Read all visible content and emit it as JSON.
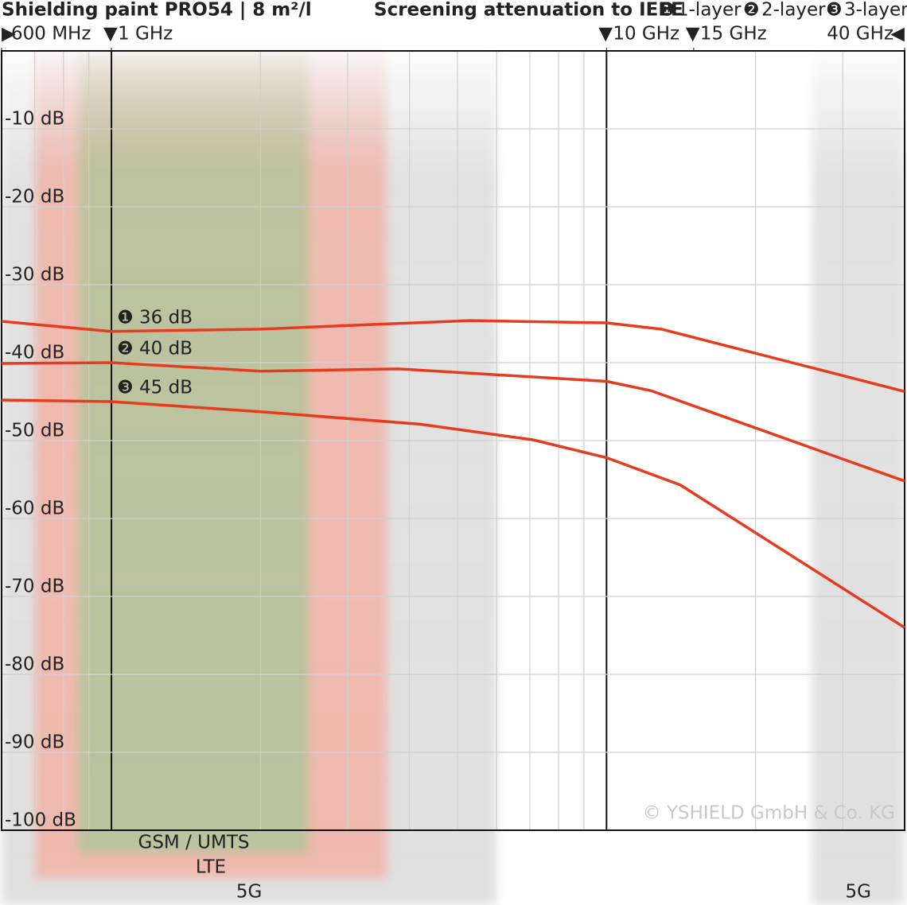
{
  "chart_data": {
    "type": "line",
    "title": "Shielding paint PRO54 | 8 m²/l",
    "subtitle": "Screening attenuation to IEEE",
    "xscale": "log",
    "xlim": [
      0.6,
      40
    ],
    "xticks": [
      {
        "value": 0.6,
        "label": "600 MHz",
        "marker": "right"
      },
      {
        "value": 1,
        "label": "1 GHz",
        "marker": "down"
      },
      {
        "value": 10,
        "label": "10 GHz",
        "marker": "down"
      },
      {
        "value": 15,
        "label": "15 GHz",
        "marker": "down"
      },
      {
        "value": 40,
        "label": "40 GHz",
        "marker": "left"
      }
    ],
    "ylim": [
      -100,
      0
    ],
    "yticks": [
      {
        "value": -10,
        "label": "-10 dB"
      },
      {
        "value": -20,
        "label": "-20 dB"
      },
      {
        "value": -30,
        "label": "-30 dB"
      },
      {
        "value": -40,
        "label": "-40 dB"
      },
      {
        "value": -50,
        "label": "-50 dB"
      },
      {
        "value": -60,
        "label": "-60 dB"
      },
      {
        "value": -70,
        "label": "-70 dB"
      },
      {
        "value": -80,
        "label": "-80 dB"
      },
      {
        "value": -90,
        "label": "-90 dB"
      },
      {
        "value": -100,
        "label": "-100 dB"
      }
    ],
    "grid": true,
    "series": [
      {
        "name": "1-layer",
        "badge": "❶",
        "color": "#e63c1e",
        "x": [
          0.6,
          1,
          2,
          5.3,
          10,
          12.9,
          40
        ],
        "values": [
          -34.7,
          -36,
          -35.7,
          -34.6,
          -34.9,
          -35.7,
          -43.7
        ],
        "value_labels": [
          null,
          "36 dB",
          null,
          null,
          null,
          null,
          null
        ]
      },
      {
        "name": "2-layer",
        "badge": "❷",
        "color": "#e63c1e",
        "x": [
          0.6,
          1,
          2,
          3.8,
          10,
          12.3,
          40
        ],
        "values": [
          -40.1,
          -40,
          -41.1,
          -40.8,
          -42.4,
          -43.6,
          -55.2
        ],
        "value_labels": [
          null,
          "40 dB",
          null,
          null,
          null,
          null,
          null
        ]
      },
      {
        "name": "3-layer",
        "badge": "❸",
        "color": "#e63c1e",
        "x": [
          0.6,
          1,
          2,
          4.2,
          7.1,
          10,
          14.1,
          40
        ],
        "values": [
          -44.8,
          -45,
          -46.3,
          -47.9,
          -49.9,
          -52.2,
          -55.7,
          -74.0
        ],
        "value_labels": [
          null,
          "45 dB",
          null,
          null,
          null,
          null,
          null,
          null
        ]
      }
    ],
    "bands": [
      {
        "name": "5G",
        "from": 0.6,
        "to": 6,
        "color": "#dcdcdc"
      },
      {
        "name": "LTE",
        "from": 0.7,
        "to": 3.6,
        "color": "#f0b4a8"
      },
      {
        "name": "GSM / UMTS",
        "from": 0.86,
        "to": 2.5,
        "color": "#b4c49c"
      },
      {
        "name": "5G",
        "from": 26,
        "to": 40,
        "color": "#dcdcdc"
      }
    ],
    "copyright": "© YSHIELD GmbH & Co. KG"
  }
}
